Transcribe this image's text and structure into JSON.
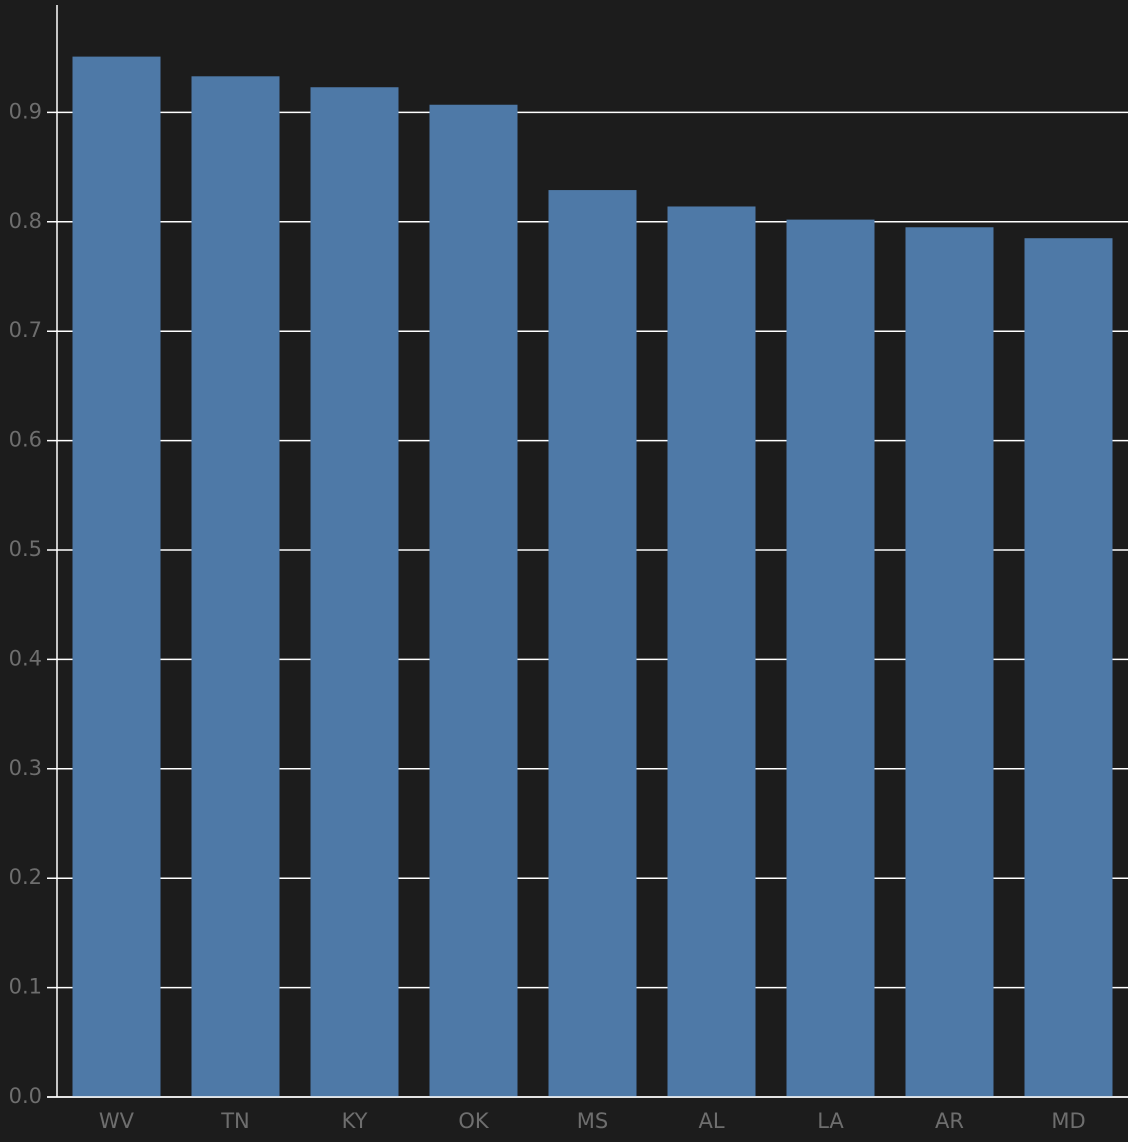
{
  "chart_data": {
    "type": "bar",
    "categories": [
      "WV",
      "TN",
      "KY",
      "OK",
      "MS",
      "AL",
      "LA",
      "AR",
      "MD"
    ],
    "values": [
      0.951,
      0.933,
      0.923,
      0.907,
      0.829,
      0.814,
      0.802,
      0.795,
      0.785
    ],
    "color": "#4e79a7",
    "ylim": [
      0,
      1
    ],
    "yticks": [
      {
        "value": 0,
        "label": "0.0"
      },
      0.1,
      0.2,
      0.3,
      0.4,
      0.5,
      0.6,
      0.7,
      0.8,
      0.9
    ],
    "grid": true
  }
}
